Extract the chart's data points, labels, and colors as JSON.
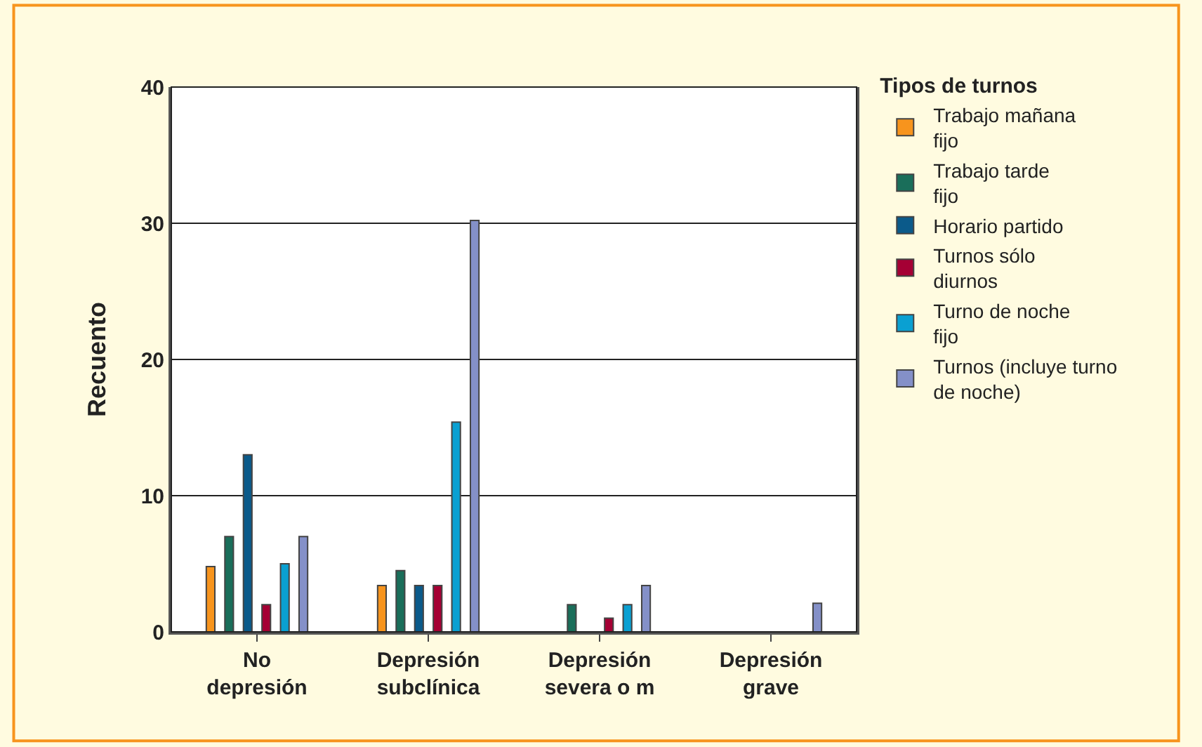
{
  "chart_data": {
    "type": "bar",
    "ylabel": "Recuento",
    "legend_title": "Tipos de turnos",
    "categories": [
      "No\ndepresión",
      "Depresión\nsubclínica",
      "Depresión\nsevera o m",
      "Depresión\ngrave"
    ],
    "series": [
      {
        "name": "Trabajo mañana\nfijo",
        "color": "#f7941d",
        "values": [
          4.8,
          3.4,
          null,
          null
        ]
      },
      {
        "name": "Trabajo tarde\nfijo",
        "color": "#1a6e5a",
        "values": [
          7,
          4.5,
          2,
          null
        ]
      },
      {
        "name": "Horario partido",
        "color": "#0b5a8a",
        "values": [
          13,
          3.4,
          null,
          null
        ]
      },
      {
        "name": "Turnos sólo\ndiurnos",
        "color": "#a50034",
        "values": [
          2,
          3.4,
          1,
          null
        ]
      },
      {
        "name": "Turno de noche\nfijo",
        "color": "#0aa0d2",
        "values": [
          5,
          15.4,
          2,
          null
        ]
      },
      {
        "name": "Turnos (incluye turno\nde noche)",
        "color": "#8490c8",
        "values": [
          7,
          30.2,
          3.4,
          2.1
        ]
      }
    ],
    "ylim": [
      0,
      40
    ],
    "yticks": [
      0,
      10,
      20,
      30,
      40
    ],
    "grid": "y",
    "legend": "right"
  }
}
